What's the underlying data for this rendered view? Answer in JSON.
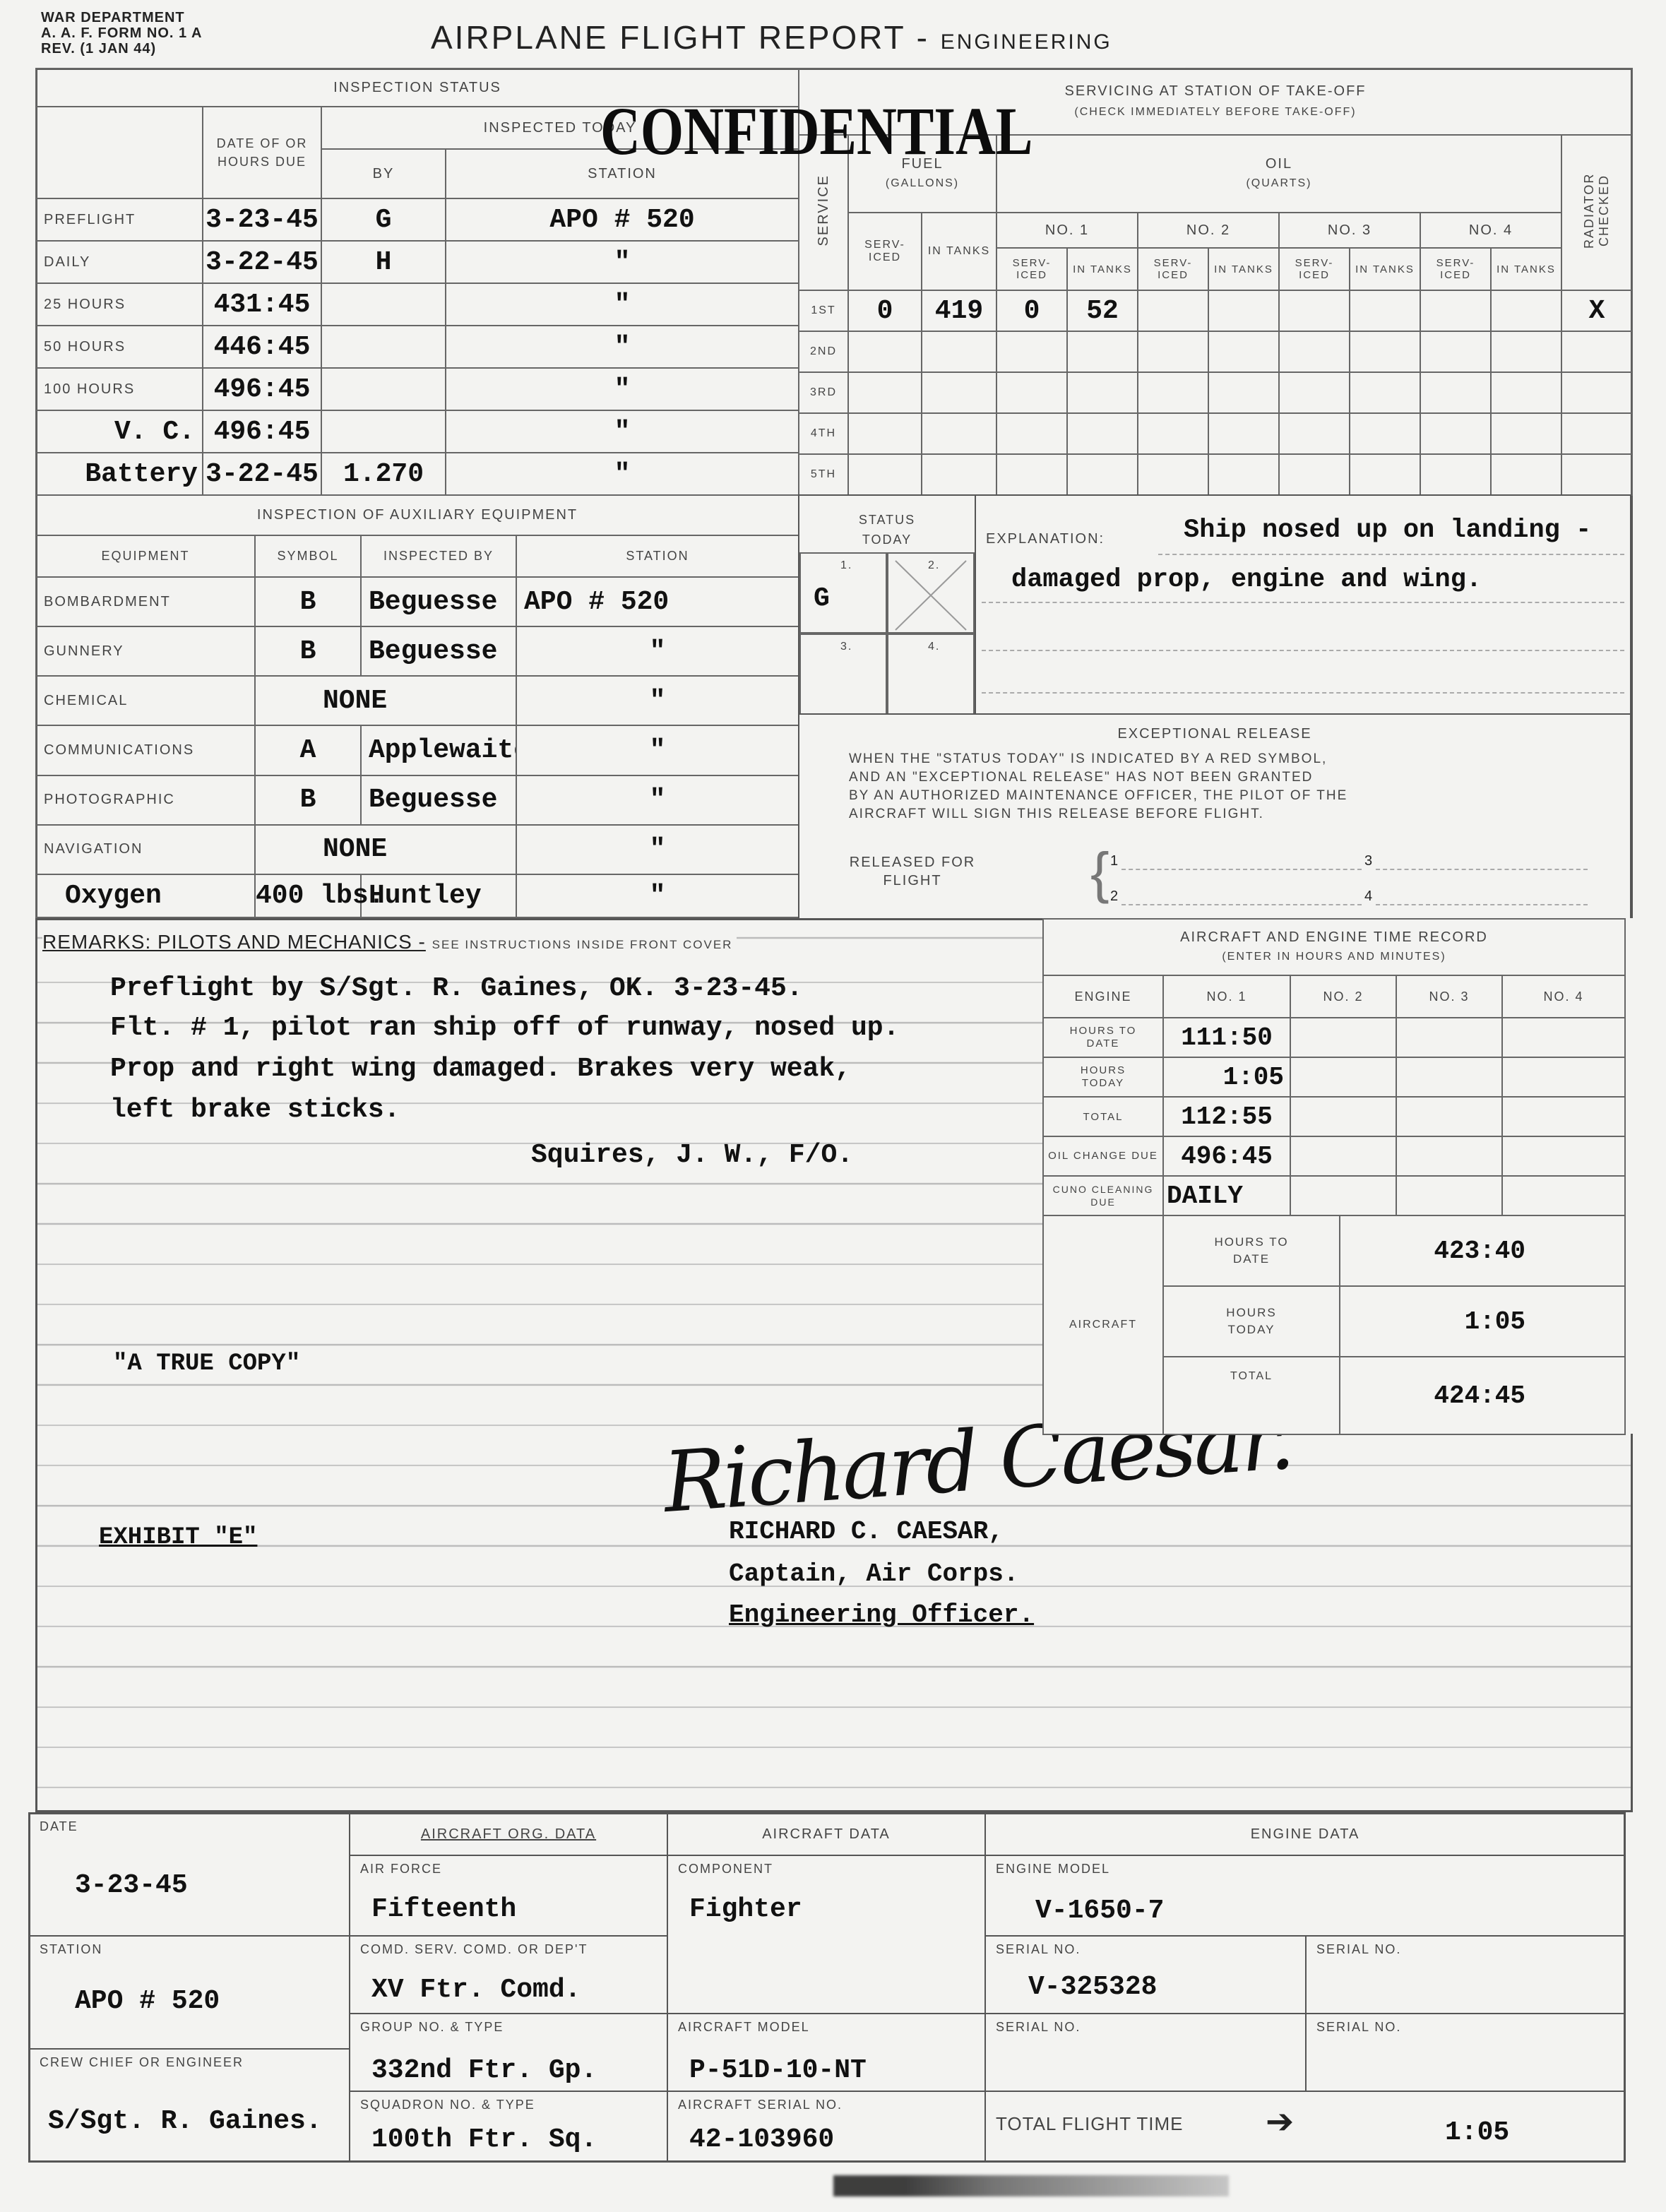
{
  "header": {
    "dept": "WAR DEPARTMENT",
    "form": "A. A. F. FORM NO. 1 A",
    "rev": "REV. (1 JAN 44)",
    "title": "AIRPLANE FLIGHT REPORT -",
    "subtitle": "ENGINEERING",
    "stamp": "CONFIDENTIAL"
  },
  "inspection": {
    "title": "INSPECTION STATUS",
    "col_date": "DATE OF OR HOURS DUE",
    "col_inspected": "INSPECTED TODAY",
    "col_by": "BY",
    "col_station": "STATION",
    "rows": [
      {
        "label": "PREFLIGHT",
        "date": "3-23-45",
        "by": "G",
        "station": "APO # 520"
      },
      {
        "label": "DAILY",
        "date": "3-22-45",
        "by": "H",
        "station": "\""
      },
      {
        "label": "25 HOURS",
        "date": "431:45",
        "by": "",
        "station": "\""
      },
      {
        "label": "50 HOURS",
        "date": "446:45",
        "by": "",
        "station": "\""
      },
      {
        "label": "100 HOURS",
        "date": "496:45",
        "by": "",
        "station": "\""
      },
      {
        "label": "V. C.",
        "date": "496:45",
        "by": "",
        "station": "\""
      },
      {
        "label": "Battery",
        "date": "3-22-45",
        "by": "1.270",
        "station": "\""
      }
    ]
  },
  "servicing": {
    "title": "SERVICING AT STATION OF TAKE-OFF",
    "subtitle": "(CHECK IMMEDIATELY BEFORE TAKE-OFF)",
    "service": "SERVICE",
    "fuel": "FUEL",
    "fuel_unit": "(GALLONS)",
    "oil": "OIL",
    "oil_unit": "(QUARTS)",
    "serviced": "SERV-ICED",
    "in_tanks": "IN TANKS",
    "radiator": "RADIATOR CHECKED",
    "engines": [
      "NO. 1",
      "NO. 2",
      "NO. 3",
      "NO. 4"
    ],
    "rows": [
      {
        "label": "1ST",
        "fuel_serviced": "0",
        "fuel_tanks": "419",
        "oil1_serviced": "0",
        "oil1_tanks": "52",
        "radiator": "X"
      },
      {
        "label": "2ND"
      },
      {
        "label": "3RD"
      },
      {
        "label": "4TH"
      },
      {
        "label": "5TH"
      }
    ]
  },
  "auxiliary": {
    "title": "INSPECTION OF AUXILIARY EQUIPMENT",
    "col_equipment": "EQUIPMENT",
    "col_symbol": "SYMBOL",
    "col_by": "INSPECTED BY",
    "col_station": "STATION",
    "rows": [
      {
        "equipment": "BOMBARDMENT",
        "symbol": "B",
        "by": "Beguesse",
        "station": "APO # 520"
      },
      {
        "equipment": "GUNNERY",
        "symbol": "B",
        "by": "Beguesse",
        "station": "\""
      },
      {
        "equipment": "CHEMICAL",
        "symbol": "NONE",
        "by": "",
        "station": "\""
      },
      {
        "equipment": "COMMUNICATIONS",
        "symbol": "A",
        "by": "Applewaite",
        "station": "\""
      },
      {
        "equipment": "PHOTOGRAPHIC",
        "symbol": "B",
        "by": "Beguesse",
        "station": "\""
      },
      {
        "equipment": "NAVIGATION",
        "symbol": "NONE",
        "by": "",
        "station": "\""
      },
      {
        "equipment": "Oxygen",
        "symbol": "400 lbs.",
        "by": "Huntley",
        "station": "\""
      }
    ]
  },
  "status": {
    "title": "STATUS TODAY",
    "cells": [
      "1.",
      "2.",
      "3.",
      "4."
    ],
    "value": "G",
    "explanation_label": "EXPLANATION:",
    "explanation": [
      "Ship nosed up on landing -",
      "damaged prop, engine and wing."
    ]
  },
  "release": {
    "title": "EXCEPTIONAL RELEASE",
    "text": [
      "WHEN THE \"STATUS TODAY\" IS INDICATED BY A RED SYMBOL,",
      "AND AN \"EXCEPTIONAL RELEASE\" HAS NOT BEEN GRANTED",
      "BY AN AUTHORIZED MAINTENANCE OFFICER, THE PILOT OF THE",
      "AIRCRAFT WILL SIGN THIS RELEASE BEFORE FLIGHT."
    ],
    "released_label": "RELEASED FOR FLIGHT",
    "slots": [
      "1",
      "2",
      "3",
      "4"
    ]
  },
  "remarks": {
    "title": "REMARKS: PILOTS AND MECHANICS -",
    "note": "SEE INSTRUCTIONS INSIDE FRONT COVER",
    "lines": [
      "Preflight by S/Sgt. R. Gaines, OK. 3-23-45.",
      "Flt. # 1, pilot ran ship off of runway, nosed up.",
      "Prop and right wing damaged. Brakes very weak,",
      "left brake sticks."
    ],
    "signed": "Squires, J. W., F/O.",
    "true_copy": "\"A TRUE COPY\"",
    "exhibit": "EXHIBIT \"E\"",
    "officer": [
      "RICHARD C. CAESAR,",
      "Captain, Air Corps.",
      "Engineering Officer."
    ],
    "signature": "Richard C. Caesar"
  },
  "time_record": {
    "title": "AIRCRAFT AND ENGINE TIME RECORD",
    "subtitle": "(ENTER IN HOURS AND MINUTES)",
    "col_engine": "ENGINE",
    "engines": [
      "NO. 1",
      "NO. 2",
      "NO. 3",
      "NO. 4"
    ],
    "rows": [
      {
        "label": "HOURS TO DATE",
        "no1": "111:50"
      },
      {
        "label": "HOURS TODAY",
        "no1": "1:05"
      },
      {
        "label": "TOTAL",
        "no1": "112:55"
      },
      {
        "label": "OIL CHANGE DUE",
        "no1": "496:45"
      },
      {
        "label": "CUNO CLEANING DUE",
        "no1": "DAILY"
      }
    ],
    "aircraft_label": "AIRCRAFT",
    "aircraft": [
      {
        "label": "HOURS TO DATE",
        "value": "423:40"
      },
      {
        "label": "HOURS TODAY",
        "value": "1:05"
      },
      {
        "label": "TOTAL",
        "value": "424:45"
      }
    ]
  },
  "footer": {
    "date_label": "DATE",
    "date": "3-23-45",
    "station_label": "STATION",
    "station": "APO # 520",
    "crew_label": "CREW CHIEF OR ENGINEER",
    "crew": "S/Sgt. R. Gaines.",
    "org_title": "AIRCRAFT ORG. DATA",
    "air_force_label": "AIR FORCE",
    "air_force": "Fifteenth",
    "command_label": "COMD. SERV. COMD. OR DEP'T",
    "command": "XV Ftr. Comd.",
    "group_label": "GROUP NO. & TYPE",
    "group": "332nd Ftr. Gp.",
    "squadron_label": "SQUADRON NO. & TYPE",
    "squadron": "100th Ftr. Sq.",
    "aircraft_title": "AIRCRAFT DATA",
    "component_label": "COMPONENT",
    "component": "Fighter",
    "model_label": "AIRCRAFT MODEL",
    "model": "P-51D-10-NT",
    "serial_label": "AIRCRAFT SERIAL NO.",
    "serial": "42-103960",
    "engine_title": "ENGINE DATA",
    "engine_model_label": "ENGINE MODEL",
    "engine_model": "V-1650-7",
    "serial_no_label": "SERIAL NO.",
    "engine_serial": "V-325328",
    "total_label": "TOTAL FLIGHT TIME",
    "total": "1:05"
  }
}
